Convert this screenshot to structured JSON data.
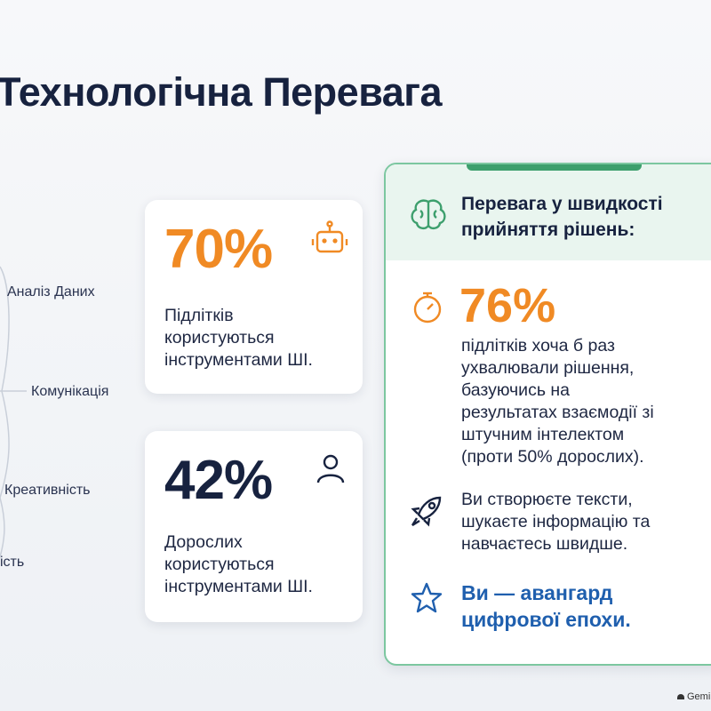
{
  "header": {
    "title": "Технологічна Перевага"
  },
  "branches": [
    "Аналіз Даних",
    "Комунікація",
    "Креативність",
    "ість"
  ],
  "cards": [
    {
      "figure": "70%",
      "lines": [
        "Підлітків",
        "користуються",
        "інструментами ШІ."
      ]
    },
    {
      "figure": "42%",
      "lines": [
        "Дорослих",
        "користуються",
        "інструментами ШІ."
      ]
    }
  ],
  "panel": {
    "heading": [
      "Перевага у швидкості",
      "прийняття рішень:"
    ],
    "figure": "76%",
    "body": [
      "підлітків хоча б раз",
      "ухвалювали рішення,",
      "базуючись на",
      "результатах взаємодії зі",
      "штучним інтелектом",
      "(проти 50% дорослих)."
    ],
    "point": [
      "Ви створюєте тексти,",
      "шукаєте інформацію та",
      "навчаєтесь швидше."
    ],
    "slogan": [
      "Ви — авангард",
      "цифрової епохи."
    ]
  },
  "watermark": "Gemi"
}
